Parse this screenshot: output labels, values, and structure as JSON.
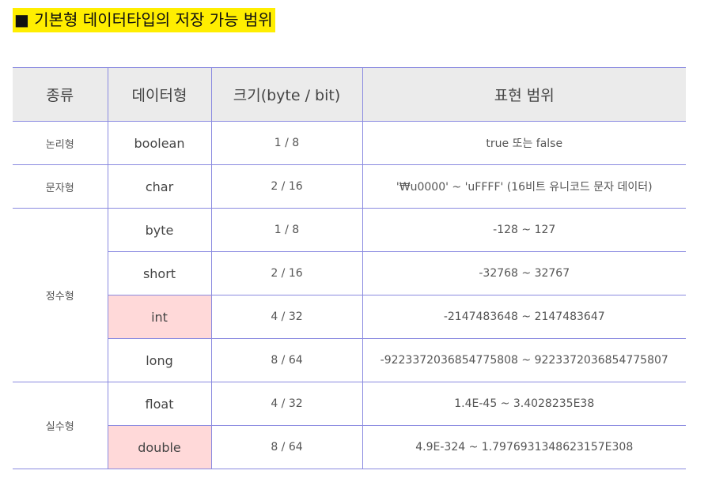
{
  "heading": "■ 기본형 데이터타입의 저장 가능 범위",
  "table": {
    "headers": [
      "종류",
      "데이터형",
      "크기(byte / bit)",
      "표현 범위"
    ],
    "categories": {
      "logical": "논리형",
      "character": "문자형",
      "integer": "정수형",
      "real": "실수형"
    },
    "rows": [
      {
        "type": "boolean",
        "size": "1 / 8",
        "range": "true 또는 false"
      },
      {
        "type": "char",
        "size": "2 / 16",
        "range": "'₩u0000' ~ 'uFFFF' (16비트 유니코드 문자 데이터)"
      },
      {
        "type": "byte",
        "size": "1 / 8",
        "range": "-128 ~ 127"
      },
      {
        "type": "short",
        "size": "2 / 16",
        "range": "-32768 ~ 32767"
      },
      {
        "type": "int",
        "size": "4 / 32",
        "range": "-2147483648 ~ 2147483647"
      },
      {
        "type": "long",
        "size": "8 / 64",
        "range": "-9223372036854775808 ~ 9223372036854775807"
      },
      {
        "type": "float",
        "size": "4 / 32",
        "range": "1.4E-45 ~ 3.4028235E38"
      },
      {
        "type": "double",
        "size": "8 / 64",
        "range": "4.9E-324 ~ 1.7976931348623157E308"
      }
    ],
    "highlighted_types": [
      "int",
      "double"
    ],
    "colors": {
      "heading_background": "#ffee00",
      "header_background": "#ebebeb",
      "highlight_background": "#ffd9d9",
      "border": "#8a8ae0"
    }
  }
}
